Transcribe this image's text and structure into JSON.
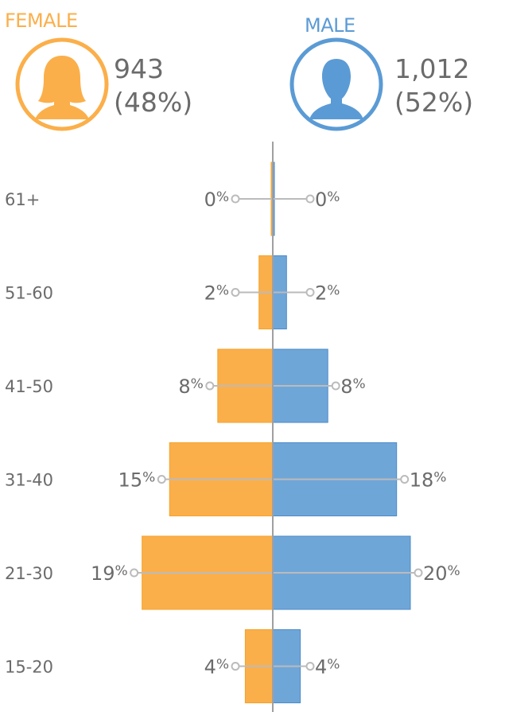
{
  "header": {
    "female": {
      "label": "FEMALE",
      "count": "943",
      "share": "(48%)"
    },
    "male": {
      "label": "MALE",
      "count": "1,012",
      "share": "(52%)"
    }
  },
  "colors": {
    "female": "#FBAF4A",
    "female_edge": "#F5A229",
    "male": "#6FA6D8",
    "male_edge": "#4B8BC9",
    "axis": "#a0a0a0",
    "leader": "#bbbbbb",
    "text": "#6b6b6b"
  },
  "chart_data": {
    "type": "bar",
    "orientation": "horizontal-diverging",
    "categories": [
      "61+",
      "51-60",
      "41-50",
      "31-40",
      "21-30",
      "15-20"
    ],
    "series": [
      {
        "name": "FEMALE",
        "values": [
          0,
          2,
          8,
          15,
          19,
          4
        ],
        "labels": [
          "0%",
          "2%",
          "8%",
          "15%",
          "19%",
          "4%"
        ]
      },
      {
        "name": "MALE",
        "values": [
          0,
          2,
          8,
          18,
          20,
          4
        ],
        "labels": [
          "0%",
          "2%",
          "8%",
          "18%",
          "20%",
          "4%"
        ]
      }
    ],
    "unit": "%"
  }
}
